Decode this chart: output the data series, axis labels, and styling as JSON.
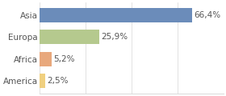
{
  "categories": [
    "Asia",
    "Europa",
    "Africa",
    "America"
  ],
  "values": [
    66.4,
    25.9,
    5.2,
    2.5
  ],
  "bar_colors": [
    "#6b8cba",
    "#b5c98e",
    "#e8a87c",
    "#f0d080"
  ],
  "labels": [
    "66,4%",
    "25,9%",
    "5,2%",
    "2,5%"
  ],
  "xlim": [
    0,
    80
  ],
  "background_color": "#ffffff",
  "plot_bg_color": "#ffffff",
  "bar_height": 0.65,
  "label_fontsize": 7.5,
  "tick_fontsize": 7.5,
  "grid_color": "#dddddd",
  "text_color": "#555555"
}
